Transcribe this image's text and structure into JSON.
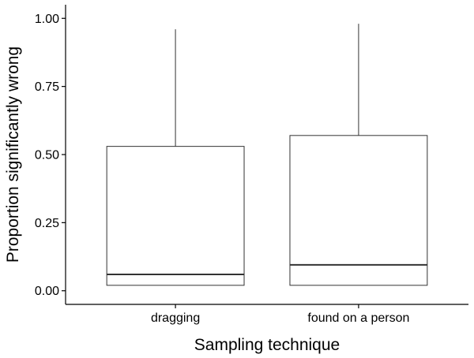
{
  "chart_data": {
    "type": "boxplot",
    "xlabel": "Sampling technique",
    "ylabel": "Proportion significantly wrong",
    "ylim": [
      -0.05,
      1.05
    ],
    "yticks": [
      0.0,
      0.25,
      0.5,
      0.75,
      1.0
    ],
    "ytick_labels": [
      "0.00",
      "0.25",
      "0.50",
      "0.75",
      "1.00"
    ],
    "grid": false,
    "categories": [
      "dragging",
      "found on a person"
    ],
    "boxes": [
      {
        "category": "dragging",
        "min": 0.02,
        "q1": 0.02,
        "median": 0.06,
        "q3": 0.53,
        "max": 0.96
      },
      {
        "category": "found on a person",
        "min": 0.02,
        "q1": 0.02,
        "median": 0.095,
        "q3": 0.57,
        "max": 0.98
      }
    ]
  }
}
